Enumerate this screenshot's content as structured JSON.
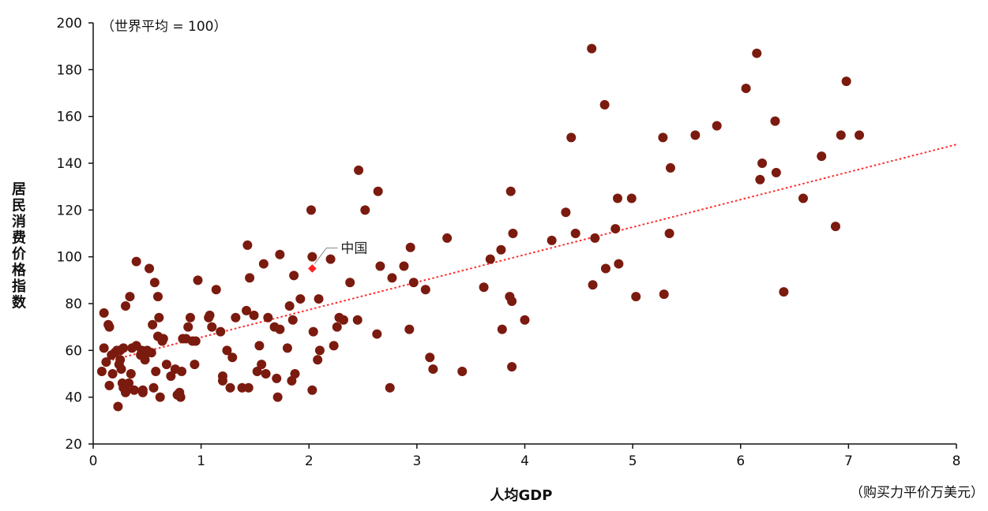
{
  "chart_data": {
    "type": "scatter",
    "title": "",
    "annotation_top": "（世界平均 = 100）",
    "xlabel": "人均GDP",
    "xunit": "（购买力平价万美元）",
    "ylabel": "居民消费价格指数",
    "xlim": [
      0,
      8
    ],
    "ylim": [
      20,
      200
    ],
    "xticks": [
      0,
      1,
      2,
      3,
      4,
      5,
      6,
      7,
      8
    ],
    "yticks": [
      20,
      40,
      60,
      80,
      100,
      120,
      140,
      160,
      180,
      200
    ],
    "grid": false,
    "legend": "none",
    "colors": {
      "points": "#7B1A0E",
      "highlight": "#FF2020",
      "trend": "#FF2A2A"
    },
    "trendline": {
      "x": [
        0.1,
        8.0
      ],
      "y": [
        55,
        148
      ]
    },
    "highlight": {
      "label": "中国",
      "x": 2.03,
      "y": 95
    },
    "points": [
      [
        0.08,
        51
      ],
      [
        0.1,
        76
      ],
      [
        0.1,
        61
      ],
      [
        0.12,
        55
      ],
      [
        0.14,
        71
      ],
      [
        0.15,
        70
      ],
      [
        0.15,
        45
      ],
      [
        0.17,
        58
      ],
      [
        0.18,
        50
      ],
      [
        0.2,
        59
      ],
      [
        0.22,
        60
      ],
      [
        0.23,
        36
      ],
      [
        0.24,
        54
      ],
      [
        0.25,
        56
      ],
      [
        0.25,
        60
      ],
      [
        0.26,
        52
      ],
      [
        0.27,
        46
      ],
      [
        0.28,
        61
      ],
      [
        0.28,
        44
      ],
      [
        0.3,
        43
      ],
      [
        0.3,
        42
      ],
      [
        0.3,
        79
      ],
      [
        0.33,
        46
      ],
      [
        0.34,
        83
      ],
      [
        0.35,
        50
      ],
      [
        0.36,
        61
      ],
      [
        0.38,
        43
      ],
      [
        0.4,
        98
      ],
      [
        0.4,
        62
      ],
      [
        0.44,
        58
      ],
      [
        0.45,
        60
      ],
      [
        0.46,
        43
      ],
      [
        0.46,
        42
      ],
      [
        0.48,
        56
      ],
      [
        0.5,
        60
      ],
      [
        0.5,
        59
      ],
      [
        0.52,
        95
      ],
      [
        0.54,
        59
      ],
      [
        0.55,
        71
      ],
      [
        0.56,
        44
      ],
      [
        0.57,
        89
      ],
      [
        0.58,
        51
      ],
      [
        0.6,
        83
      ],
      [
        0.6,
        66
      ],
      [
        0.61,
        74
      ],
      [
        0.62,
        40
      ],
      [
        0.64,
        64
      ],
      [
        0.65,
        65
      ],
      [
        0.68,
        54
      ],
      [
        0.72,
        49
      ],
      [
        0.76,
        52
      ],
      [
        0.78,
        41
      ],
      [
        0.8,
        42
      ],
      [
        0.81,
        40
      ],
      [
        0.82,
        51
      ],
      [
        0.83,
        65
      ],
      [
        0.86,
        65
      ],
      [
        0.88,
        70
      ],
      [
        0.9,
        74
      ],
      [
        0.92,
        64
      ],
      [
        0.94,
        54
      ],
      [
        0.95,
        64
      ],
      [
        0.97,
        90
      ],
      [
        1.07,
        74
      ],
      [
        1.08,
        75
      ],
      [
        1.1,
        70
      ],
      [
        1.14,
        86
      ],
      [
        1.18,
        68
      ],
      [
        1.2,
        47
      ],
      [
        1.2,
        49
      ],
      [
        1.24,
        60
      ],
      [
        1.27,
        44
      ],
      [
        1.29,
        57
      ],
      [
        1.32,
        74
      ],
      [
        1.38,
        44
      ],
      [
        1.42,
        77
      ],
      [
        1.43,
        105
      ],
      [
        1.44,
        44
      ],
      [
        1.45,
        91
      ],
      [
        1.49,
        75
      ],
      [
        1.52,
        51
      ],
      [
        1.54,
        62
      ],
      [
        1.56,
        54
      ],
      [
        1.58,
        97
      ],
      [
        1.6,
        50
      ],
      [
        1.62,
        74
      ],
      [
        1.68,
        70
      ],
      [
        1.7,
        48
      ],
      [
        1.71,
        40
      ],
      [
        1.73,
        69
      ],
      [
        1.73,
        101
      ],
      [
        1.8,
        61
      ],
      [
        1.82,
        79
      ],
      [
        1.84,
        47
      ],
      [
        1.85,
        73
      ],
      [
        1.86,
        92
      ],
      [
        1.87,
        50
      ],
      [
        1.92,
        82
      ],
      [
        2.02,
        120
      ],
      [
        2.03,
        100
      ],
      [
        2.03,
        43
      ],
      [
        2.04,
        68
      ],
      [
        2.08,
        56
      ],
      [
        2.09,
        82
      ],
      [
        2.1,
        60
      ],
      [
        2.2,
        99
      ],
      [
        2.23,
        62
      ],
      [
        2.26,
        70
      ],
      [
        2.28,
        74
      ],
      [
        2.32,
        73
      ],
      [
        2.38,
        89
      ],
      [
        2.45,
        73
      ],
      [
        2.46,
        137
      ],
      [
        2.52,
        120
      ],
      [
        2.63,
        67
      ],
      [
        2.64,
        128
      ],
      [
        2.66,
        96
      ],
      [
        2.75,
        44
      ],
      [
        2.77,
        91
      ],
      [
        2.88,
        96
      ],
      [
        2.93,
        69
      ],
      [
        2.94,
        104
      ],
      [
        2.97,
        89
      ],
      [
        3.08,
        86
      ],
      [
        3.12,
        57
      ],
      [
        3.15,
        52
      ],
      [
        3.28,
        108
      ],
      [
        3.42,
        51
      ],
      [
        3.62,
        87
      ],
      [
        3.68,
        99
      ],
      [
        3.78,
        103
      ],
      [
        3.79,
        69
      ],
      [
        3.86,
        83
      ],
      [
        3.87,
        128
      ],
      [
        3.88,
        81
      ],
      [
        3.88,
        53
      ],
      [
        3.89,
        110
      ],
      [
        4.0,
        73
      ],
      [
        4.25,
        107
      ],
      [
        4.38,
        119
      ],
      [
        4.43,
        151
      ],
      [
        4.47,
        110
      ],
      [
        4.62,
        189
      ],
      [
        4.63,
        88
      ],
      [
        4.65,
        108
      ],
      [
        4.74,
        165
      ],
      [
        4.75,
        95
      ],
      [
        4.84,
        112
      ],
      [
        4.86,
        125
      ],
      [
        4.87,
        97
      ],
      [
        4.99,
        125
      ],
      [
        5.03,
        83
      ],
      [
        5.28,
        151
      ],
      [
        5.29,
        84
      ],
      [
        5.34,
        110
      ],
      [
        5.35,
        138
      ],
      [
        5.58,
        152
      ],
      [
        5.78,
        156
      ],
      [
        6.05,
        172
      ],
      [
        6.15,
        187
      ],
      [
        6.18,
        133
      ],
      [
        6.2,
        140
      ],
      [
        6.32,
        158
      ],
      [
        6.33,
        136
      ],
      [
        6.4,
        85
      ],
      [
        6.58,
        125
      ],
      [
        6.75,
        143
      ],
      [
        6.88,
        113
      ],
      [
        6.93,
        152
      ],
      [
        6.98,
        175
      ],
      [
        7.1,
        152
      ]
    ]
  }
}
